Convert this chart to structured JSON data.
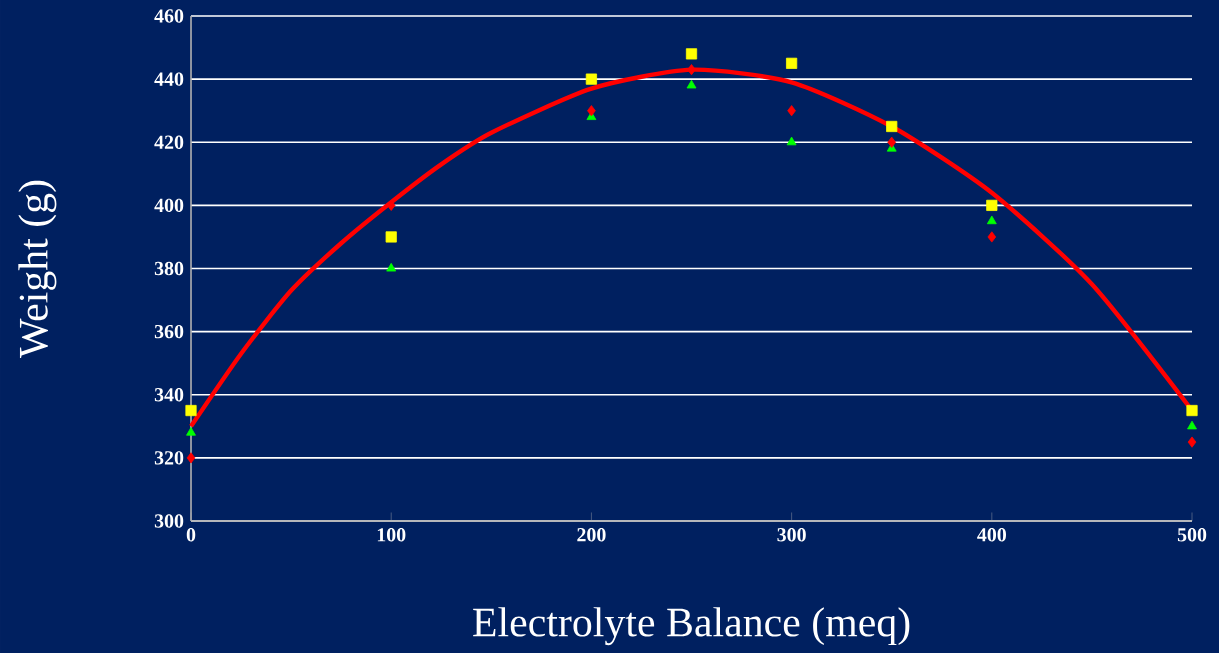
{
  "chart_data": {
    "type": "scatter",
    "xlabel": "Electrolyte Balance (meq)",
    "ylabel": "Weight (g)",
    "xlim": [
      0,
      500
    ],
    "ylim": [
      300,
      460
    ],
    "xticks": [
      0,
      100,
      200,
      300,
      400,
      500
    ],
    "yticks": [
      300,
      320,
      340,
      360,
      380,
      400,
      420,
      440,
      460
    ],
    "grid": "y",
    "series": [
      {
        "type": "line",
        "color": "#ff0000",
        "marker": "none",
        "x": [
          0,
          25,
          50,
          75,
          100,
          125,
          150,
          200,
          250,
          300,
          350,
          400,
          450,
          500
        ],
        "values": [
          330,
          353,
          373,
          388,
          401,
          413,
          423,
          437,
          443,
          439,
          425,
          404,
          375,
          335
        ]
      },
      {
        "color": "#ffff00",
        "marker": "square",
        "x": [
          0,
          100,
          200,
          250,
          300,
          350,
          400,
          500
        ],
        "values": [
          335,
          390,
          440,
          448,
          445,
          425,
          400,
          335
        ]
      },
      {
        "color": "#00ff00",
        "marker": "triangle",
        "x": [
          0,
          100,
          200,
          250,
          300,
          350,
          400,
          500
        ],
        "values": [
          328,
          380,
          428,
          438,
          420,
          418,
          395,
          330
        ]
      },
      {
        "color": "#ff0000",
        "marker": "diamond",
        "x": [
          0,
          100,
          200,
          250,
          300,
          350,
          400,
          500
        ],
        "values": [
          320,
          400,
          430,
          443,
          430,
          420,
          390,
          325
        ]
      }
    ]
  }
}
